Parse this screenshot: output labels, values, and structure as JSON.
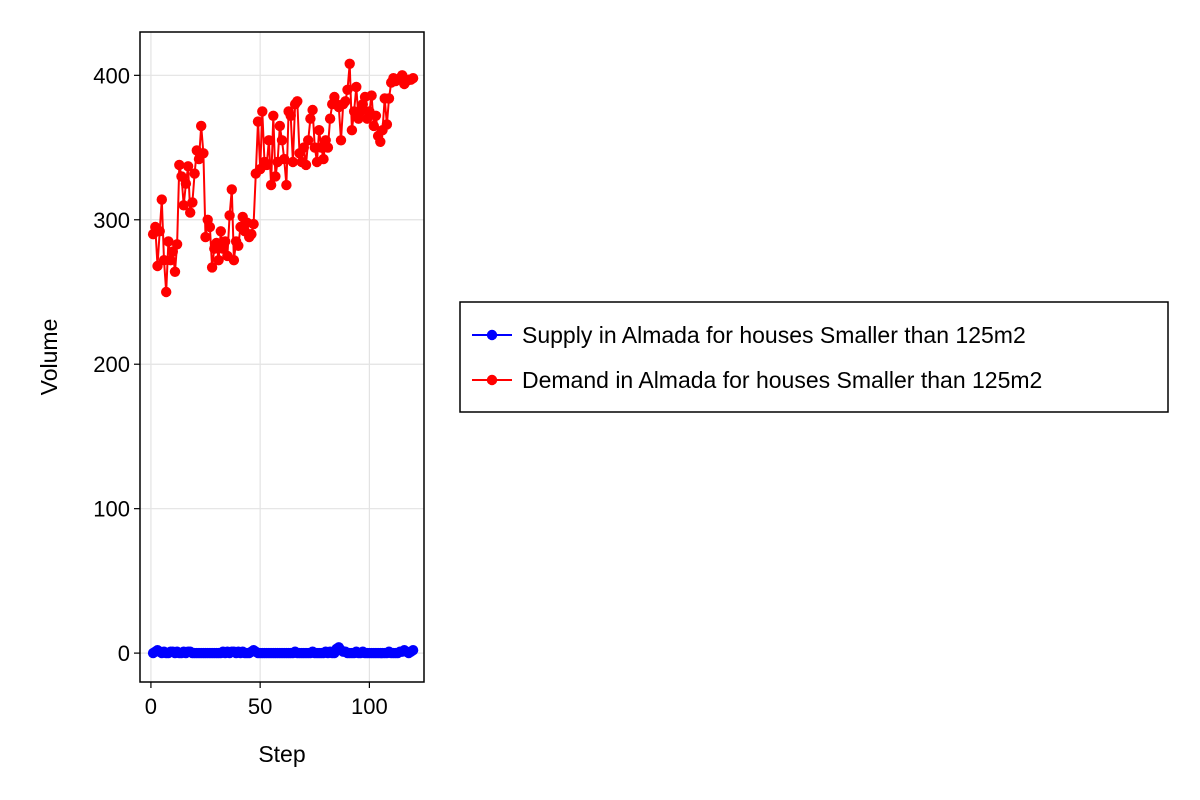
{
  "chart_data": {
    "type": "line",
    "title": "",
    "xlabel": "Step",
    "ylabel": "Volume",
    "xlim": [
      -5,
      125
    ],
    "ylim": [
      -20,
      430
    ],
    "xticks": [
      0,
      50,
      100
    ],
    "yticks": [
      0,
      100,
      200,
      300,
      400
    ],
    "grid": true,
    "legend_position": "right",
    "series": [
      {
        "name": "Supply in Almada for houses Smaller than 125m2",
        "color": "#0000ff",
        "marker": "circle",
        "x": [
          1,
          2,
          3,
          4,
          5,
          6,
          7,
          8,
          9,
          10,
          11,
          12,
          13,
          14,
          15,
          16,
          17,
          18,
          19,
          20,
          21,
          22,
          23,
          24,
          25,
          26,
          27,
          28,
          29,
          30,
          31,
          32,
          33,
          34,
          35,
          36,
          37,
          38,
          39,
          40,
          41,
          42,
          43,
          44,
          45,
          46,
          47,
          48,
          49,
          50,
          51,
          52,
          53,
          54,
          55,
          56,
          57,
          58,
          59,
          60,
          61,
          62,
          63,
          64,
          65,
          66,
          67,
          68,
          69,
          70,
          71,
          72,
          73,
          74,
          75,
          76,
          77,
          78,
          79,
          80,
          81,
          82,
          83,
          84,
          85,
          86,
          87,
          88,
          89,
          90,
          91,
          92,
          93,
          94,
          95,
          96,
          97,
          98,
          99,
          100,
          101,
          102,
          103,
          104,
          105,
          106,
          107,
          108,
          109,
          110,
          111,
          112,
          113,
          114,
          115,
          116,
          117,
          118,
          119,
          120
        ],
        "y": [
          0,
          1,
          2,
          1,
          0,
          1,
          0,
          0,
          1,
          1,
          0,
          1,
          0,
          0,
          1,
          0,
          1,
          1,
          0,
          0,
          0,
          0,
          0,
          0,
          0,
          0,
          0,
          0,
          0,
          0,
          0,
          0,
          1,
          0,
          1,
          0,
          1,
          1,
          0,
          1,
          0,
          1,
          0,
          0,
          0,
          1,
          2,
          1,
          0,
          0,
          0,
          0,
          0,
          0,
          0,
          0,
          0,
          0,
          0,
          0,
          0,
          0,
          0,
          0,
          0,
          1,
          0,
          0,
          0,
          0,
          0,
          0,
          0,
          1,
          0,
          0,
          0,
          0,
          0,
          1,
          0,
          1,
          0,
          0,
          3,
          4,
          2,
          1,
          1,
          0,
          0,
          0,
          0,
          1,
          0,
          0,
          1,
          0,
          0,
          0,
          0,
          0,
          0,
          0,
          0,
          0,
          0,
          0,
          1,
          0,
          0,
          0,
          0,
          1,
          1,
          2,
          1,
          0,
          1,
          2
        ]
      },
      {
        "name": "Demand in Almada for houses Smaller than 125m2",
        "color": "#ff0000",
        "marker": "circle",
        "x": [
          1,
          2,
          3,
          4,
          5,
          6,
          7,
          8,
          9,
          10,
          11,
          12,
          13,
          14,
          15,
          16,
          17,
          18,
          19,
          20,
          21,
          22,
          23,
          24,
          25,
          26,
          27,
          28,
          29,
          30,
          31,
          32,
          33,
          34,
          35,
          36,
          37,
          38,
          39,
          40,
          41,
          42,
          43,
          44,
          45,
          46,
          47,
          48,
          49,
          50,
          51,
          52,
          53,
          54,
          55,
          56,
          57,
          58,
          59,
          60,
          61,
          62,
          63,
          64,
          65,
          66,
          67,
          68,
          69,
          70,
          71,
          72,
          73,
          74,
          75,
          76,
          77,
          78,
          79,
          80,
          81,
          82,
          83,
          84,
          85,
          86,
          87,
          88,
          89,
          90,
          91,
          92,
          93,
          94,
          95,
          96,
          97,
          98,
          99,
          100,
          101,
          102,
          103,
          104,
          105,
          106,
          107,
          108,
          109,
          110,
          111,
          112,
          113,
          114,
          115,
          116,
          117,
          118,
          119,
          120
        ],
        "y": [
          290,
          295,
          268,
          292,
          314,
          272,
          250,
          285,
          272,
          278,
          264,
          283,
          338,
          330,
          310,
          325,
          337,
          305,
          312,
          332,
          348,
          342,
          365,
          346,
          288,
          300,
          295,
          267,
          280,
          284,
          272,
          292,
          280,
          285,
          275,
          303,
          321,
          272,
          285,
          282,
          295,
          302,
          292,
          298,
          288,
          290,
          297,
          332,
          368,
          335,
          375,
          340,
          338,
          355,
          324,
          372,
          330,
          340,
          365,
          355,
          342,
          324,
          375,
          372,
          340,
          380,
          382,
          346,
          340,
          350,
          338,
          355,
          370,
          376,
          350,
          340,
          362,
          350,
          342,
          355,
          350,
          370,
          380,
          385,
          380,
          378,
          355,
          380,
          382,
          390,
          408,
          362,
          375,
          392,
          370,
          375,
          380,
          385,
          370,
          375,
          386,
          365,
          372,
          358,
          354,
          362,
          384,
          366,
          384,
          395,
          398,
          396,
          397,
          398,
          400,
          394,
          396,
          397,
          397,
          398
        ]
      }
    ]
  }
}
